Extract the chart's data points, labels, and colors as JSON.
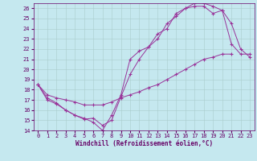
{
  "xlabel": "Windchill (Refroidissement éolien,°C)",
  "xlim": [
    -0.5,
    23.5
  ],
  "ylim": [
    14,
    26.5
  ],
  "xticks": [
    0,
    1,
    2,
    3,
    4,
    5,
    6,
    7,
    8,
    9,
    10,
    11,
    12,
    13,
    14,
    15,
    16,
    17,
    18,
    19,
    20,
    21,
    22,
    23
  ],
  "yticks": [
    14,
    15,
    16,
    17,
    18,
    19,
    20,
    21,
    22,
    23,
    24,
    25,
    26
  ],
  "background_color": "#c5e8ef",
  "grid_color": "#aacccc",
  "line_color": "#993399",
  "line1_x": [
    0,
    1,
    2,
    3,
    4,
    5,
    6,
    7,
    8,
    9,
    10,
    11,
    12,
    13,
    14,
    15,
    16,
    17,
    18,
    19,
    20,
    21,
    22,
    23
  ],
  "line1_y": [
    18.5,
    17.2,
    16.7,
    16.0,
    15.5,
    15.2,
    14.8,
    14.0,
    15.5,
    17.5,
    21.0,
    21.8,
    22.2,
    23.5,
    24.0,
    25.5,
    26.0,
    26.5,
    26.5,
    26.2,
    25.8,
    22.5,
    21.5,
    21.5
  ],
  "line2_x": [
    0,
    1,
    2,
    3,
    4,
    5,
    6,
    7,
    8,
    9,
    10,
    11,
    12,
    13,
    14,
    15,
    16,
    17,
    18,
    19,
    20,
    21,
    22,
    23
  ],
  "line2_y": [
    18.5,
    17.0,
    16.6,
    16.0,
    15.5,
    15.1,
    15.2,
    14.5,
    15.0,
    17.3,
    19.5,
    21.0,
    22.2,
    23.0,
    24.5,
    25.2,
    26.0,
    26.2,
    26.2,
    25.5,
    25.8,
    24.5,
    22.0,
    21.2
  ],
  "line3_x": [
    0,
    1,
    2,
    3,
    4,
    5,
    6,
    7,
    8,
    9,
    10,
    11,
    12,
    13,
    14,
    15,
    16,
    17,
    18,
    19,
    20,
    21,
    22,
    23
  ],
  "line3_y": [
    18.5,
    17.5,
    17.2,
    17.0,
    16.8,
    16.5,
    16.5,
    16.5,
    16.8,
    17.2,
    17.5,
    17.8,
    18.2,
    18.5,
    19.0,
    19.5,
    20.0,
    20.5,
    21.0,
    21.2,
    21.5,
    21.5,
    null,
    null
  ]
}
